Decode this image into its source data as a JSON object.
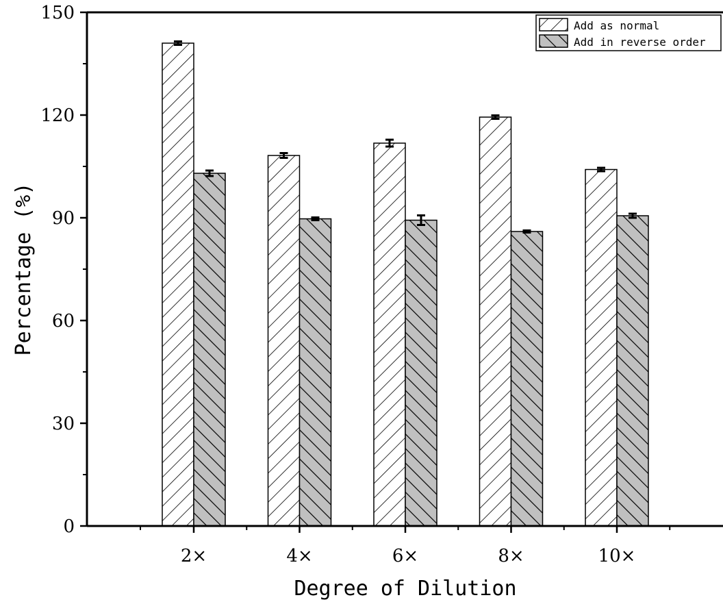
{
  "chart_data": {
    "type": "bar",
    "title": "",
    "xlabel": "Degree of Dilution",
    "ylabel": "Percentage (%)",
    "categories": [
      "2×",
      "4×",
      "6×",
      "8×",
      "10×"
    ],
    "ylim": [
      0,
      150
    ],
    "yticks": [
      0,
      30,
      60,
      90,
      120,
      150
    ],
    "legend_position": "top-right",
    "grid": false,
    "series": [
      {
        "name": "Add as normal",
        "values": [
          141.0,
          108.2,
          111.8,
          119.4,
          104.1
        ],
        "errors": [
          0.5,
          0.7,
          1.0,
          0.5,
          0.5
        ],
        "pattern": "forward-hatch",
        "fill": "#ffffff"
      },
      {
        "name": "Add in reverse order",
        "values": [
          103.0,
          89.7,
          89.3,
          86.0,
          90.6
        ],
        "errors": [
          0.8,
          0.4,
          1.4,
          0.3,
          0.6
        ],
        "pattern": "back-hatch",
        "fill": "#c0c0c0"
      }
    ]
  }
}
